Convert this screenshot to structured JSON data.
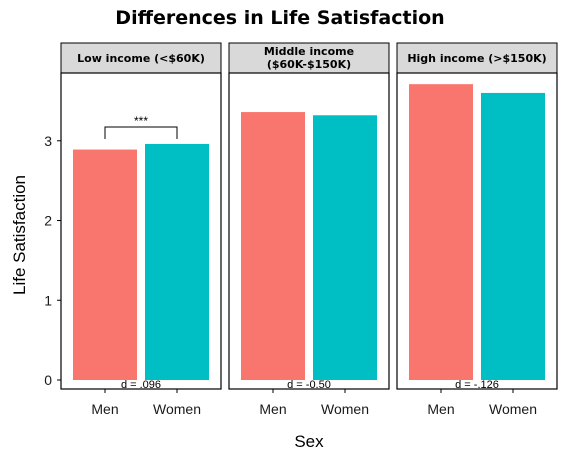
{
  "chart_data": {
    "type": "bar",
    "title": "Differences in Life Satisfaction",
    "xlabel": "Sex",
    "ylabel": "Life Satisfaction",
    "ylim": [
      0,
      3.85
    ],
    "yticks": [
      0,
      1,
      2,
      3
    ],
    "categories": [
      "Men",
      "Women"
    ],
    "colors": {
      "Men": "#F8766D",
      "Women": "#00BFC4"
    },
    "grid": false,
    "legend": "none",
    "panels": [
      {
        "label": "Low income (<$60K)",
        "values": [
          2.89,
          2.96
        ],
        "annotation": "d = .096",
        "significance": "***"
      },
      {
        "label": "Middle income\n($60K-$150K)",
        "values": [
          3.36,
          3.32
        ],
        "annotation": "d = -0.50",
        "significance": ""
      },
      {
        "label": "High income (>$150K)",
        "values": [
          3.71,
          3.6
        ],
        "annotation": "d = -.126",
        "significance": ""
      }
    ]
  }
}
